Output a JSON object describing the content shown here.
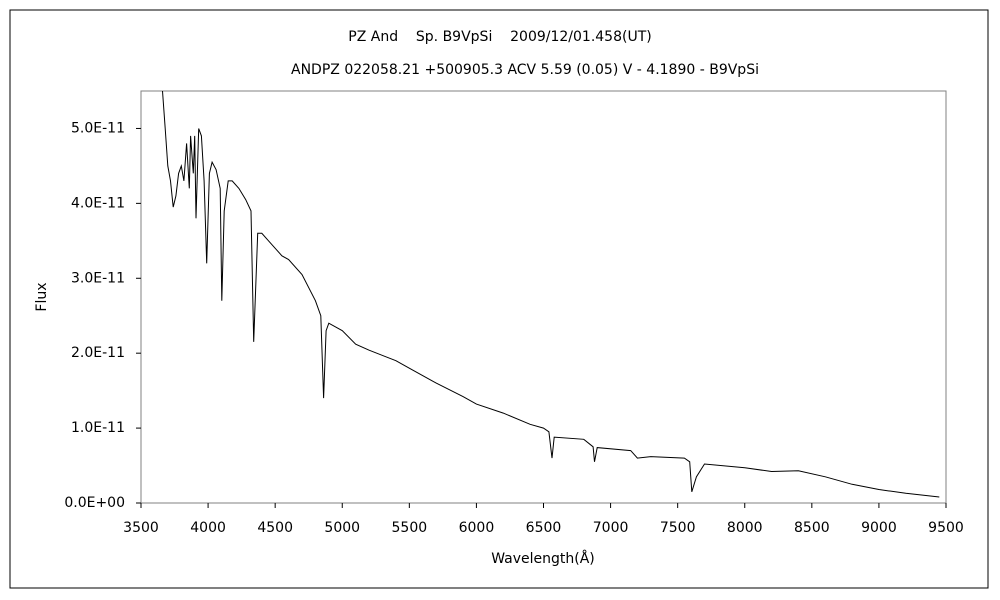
{
  "chart_data": {
    "type": "line",
    "title": "PZ And    Sp. B9VpSi    2009/12/01.458(UT)",
    "subtitle": "ANDPZ 022058.21 +500905.3 ACV 5.59 (0.05) V - 4.1890 - B9VpSi",
    "x_label": "Wavelength(Å)",
    "y_label": "Flux",
    "xlim": [
      3500,
      9500
    ],
    "xticks": [
      3500,
      4000,
      4500,
      5000,
      5500,
      6000,
      6500,
      7000,
      7500,
      8000,
      8500,
      9000,
      9500
    ],
    "ylim": [
      0,
      5.5e-11
    ],
    "yticks": [
      {
        "value": 0,
        "label": "0.0E+00"
      },
      {
        "value": 1e-11,
        "label": "1.0E-11"
      },
      {
        "value": 2e-11,
        "label": "2.0E-11"
      },
      {
        "value": 3e-11,
        "label": "3.0E-11"
      },
      {
        "value": 4e-11,
        "label": "4.0E-11"
      },
      {
        "value": 5e-11,
        "label": "5.0E-11"
      }
    ],
    "grid": false,
    "series": [
      {
        "name": "PZ And",
        "color": "#000000",
        "x": [
          3660,
          3680,
          3700,
          3720,
          3740,
          3760,
          3780,
          3800,
          3820,
          3840,
          3860,
          3870,
          3890,
          3900,
          3910,
          3930,
          3950,
          3970,
          3990,
          4010,
          4030,
          4060,
          4090,
          4102,
          4120,
          4150,
          4180,
          4230,
          4280,
          4320,
          4340,
          4370,
          4400,
          4450,
          4500,
          4550,
          4600,
          4700,
          4800,
          4840,
          4861,
          4880,
          4900,
          5000,
          5100,
          5200,
          5400,
          5500,
          5700,
          5900,
          6000,
          6200,
          6400,
          6500,
          6540,
          6563,
          6580,
          6800,
          6870,
          6880,
          6900,
          7150,
          7200,
          7300,
          7550,
          7590,
          7605,
          7640,
          7700,
          8000,
          8200,
          8400,
          8600,
          8800,
          9000,
          9200,
          9450
        ],
        "values": [
          5.5e-11,
          5e-11,
          4.5e-11,
          4.3e-11,
          3.95e-11,
          4.1e-11,
          4.4e-11,
          4.5e-11,
          4.3e-11,
          4.8e-11,
          4.2e-11,
          4.9e-11,
          4.4e-11,
          4.9e-11,
          3.8e-11,
          5e-11,
          4.9e-11,
          4.3e-11,
          3.2e-11,
          4.4e-11,
          4.55e-11,
          4.45e-11,
          4.2e-11,
          2.7e-11,
          3.9e-11,
          4.3e-11,
          4.3e-11,
          4.2e-11,
          4.05e-11,
          3.9e-11,
          2.15e-11,
          3.6e-11,
          3.6e-11,
          3.5e-11,
          3.4e-11,
          3.3e-11,
          3.25e-11,
          3.05e-11,
          2.7e-11,
          2.5e-11,
          1.4e-11,
          2.3e-11,
          2.4e-11,
          2.3e-11,
          2.12e-11,
          2.04e-11,
          1.9e-11,
          1.8e-11,
          1.6e-11,
          1.42e-11,
          1.32e-11,
          1.2e-11,
          1.05e-11,
          1e-11,
          9.5e-12,
          6e-12,
          8.8e-12,
          8.5e-12,
          7.5e-12,
          5.5e-12,
          7.4e-12,
          7e-12,
          6e-12,
          6.2e-12,
          6e-12,
          5.5e-12,
          1.5e-12,
          3.5e-12,
          5.2e-12,
          4.7e-12,
          4.2e-12,
          4.3e-12,
          3.5e-12,
          2.5e-12,
          1.8e-12,
          1.3e-12,
          8e-13
        ]
      }
    ]
  }
}
